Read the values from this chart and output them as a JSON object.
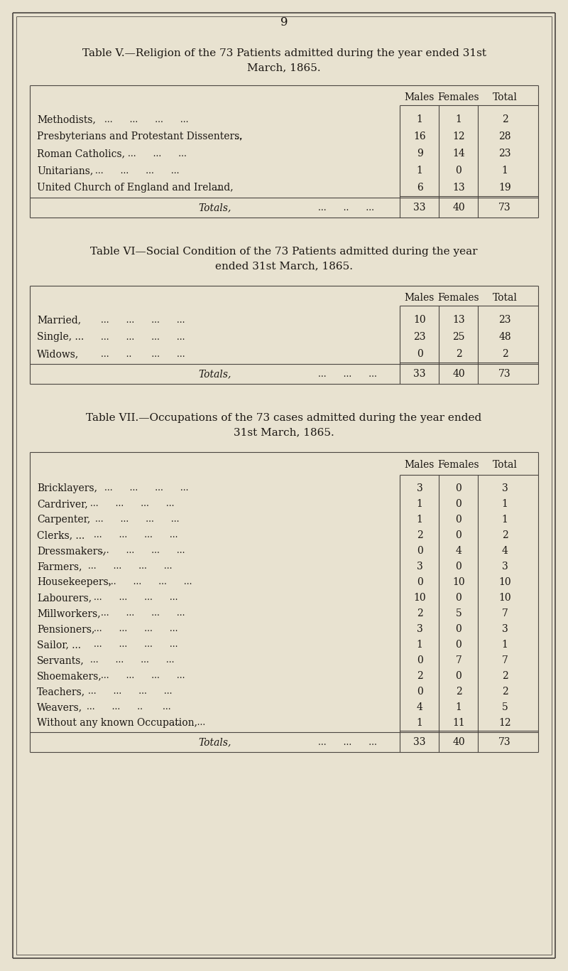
{
  "bg_color": "#e8e2d0",
  "text_color": "#1a1612",
  "line_color": "#4a4540",
  "page_number": "9",
  "table1_title1": "Table V.—Religion of the 73 Patients admitted during the year ended 31st",
  "table1_title2": "March, 1865.",
  "table1_rows": [
    [
      "Methodists,",
      "...",
      "...",
      "...",
      "...",
      "1",
      "1",
      "2"
    ],
    [
      "Presbyterians and Protestant Dissenters,",
      "...",
      "",
      "",
      "",
      "16",
      "12",
      "28"
    ],
    [
      "Roman Catholics,",
      "...",
      "...",
      "...",
      "",
      "9",
      "14",
      "23"
    ],
    [
      "Unitarians,",
      "...",
      "...",
      "...",
      "...",
      "1",
      "0",
      "1"
    ],
    [
      "United Church of England and Ireland,",
      "...",
      "",
      "",
      "",
      "6",
      "13",
      "19"
    ]
  ],
  "table2_title1": "Table VI—Social Condition of the 73 Patients admitted during the year",
  "table2_title2": "ended 31st March, 1865.",
  "table2_rows": [
    [
      "Married,",
      "...",
      "...",
      "...",
      "...",
      "10",
      "13",
      "23"
    ],
    [
      "Single, ...",
      "...",
      "...",
      "...",
      "...",
      "23",
      "25",
      "48"
    ],
    [
      "Widows,",
      "...",
      "..",
      "...",
      "...",
      "0",
      "2",
      "2"
    ]
  ],
  "table3_title1": "Table VII.—Occupations of the 73 cases admitted during the year ended",
  "table3_title2": "31st March, 1865.",
  "table3_rows": [
    [
      "Bricklayers,",
      "...",
      "...",
      "...",
      "...",
      "3",
      "0",
      "3"
    ],
    [
      "Cardriver,",
      "...",
      "...",
      "...",
      "...",
      "1",
      "0",
      "1"
    ],
    [
      "Carpenter,",
      "...",
      "...",
      "...",
      "...",
      "1",
      "0",
      "1"
    ],
    [
      "Clerks, ...",
      "...",
      "...",
      "...",
      "...",
      "2",
      "0",
      "2"
    ],
    [
      "Dressmakers,",
      "...",
      "...",
      "...",
      "...",
      "0",
      "4",
      "4"
    ],
    [
      "Farmers,",
      "...",
      "...",
      "...",
      "...",
      "3",
      "0",
      "3"
    ],
    [
      "Housekeepers,",
      "...",
      "...",
      "...",
      "...",
      "0",
      "10",
      "10"
    ],
    [
      "Labourers,",
      "...",
      "...",
      "...",
      "...",
      "10",
      "0",
      "10"
    ],
    [
      "Millworkers,",
      "...",
      "...",
      "...",
      "...",
      "2",
      "5",
      "7"
    ],
    [
      "Pensioners,",
      "...",
      "...",
      "...",
      "",
      "3",
      "0",
      "3"
    ],
    [
      "Sailor, ...",
      "...",
      "...",
      "...",
      "...",
      "1",
      "0",
      "1"
    ],
    [
      "Servants,",
      "...",
      "...",
      "...",
      "...",
      "0",
      "7",
      "7"
    ],
    [
      "Shoemakers,",
      "...",
      "...",
      "...",
      "...",
      "2",
      "0",
      "2"
    ],
    [
      "Teachers,",
      "...",
      "...",
      "...",
      "...",
      "0",
      "2",
      "2"
    ],
    [
      "Weavers,",
      "...",
      "...",
      "..",
      "...",
      "4",
      "1",
      "5"
    ],
    [
      "Without any known Occupation,",
      "...",
      "",
      "...",
      "",
      "1",
      "11",
      "12"
    ]
  ]
}
